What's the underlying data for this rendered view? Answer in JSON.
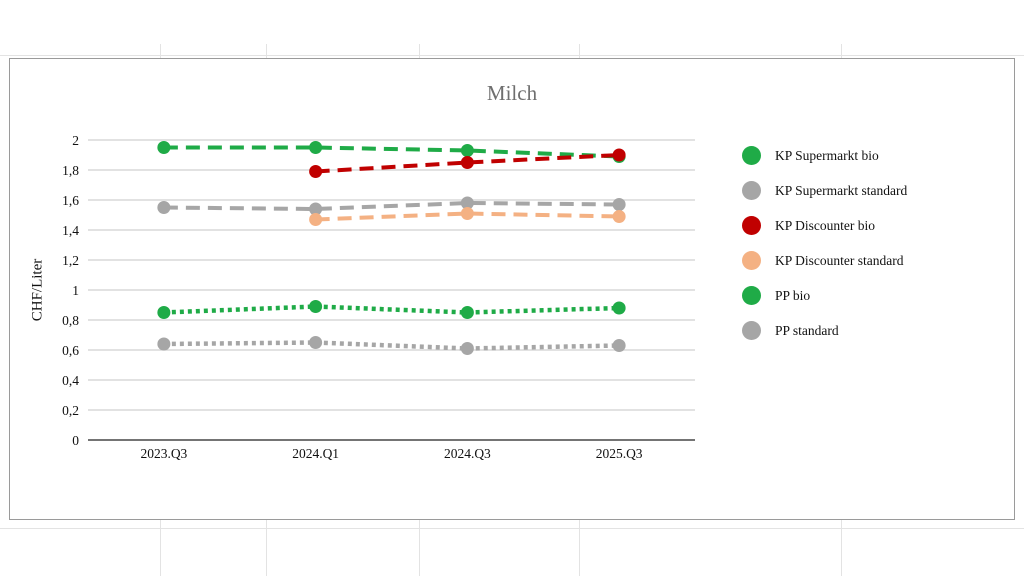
{
  "chart_data": {
    "type": "line",
    "title": "Milch",
    "xlabel": "",
    "ylabel": "CHF/Liter",
    "categories": [
      "2023.Q3",
      "2024.Q1",
      "2024.Q3",
      "2025.Q3"
    ],
    "ylim": [
      0,
      2
    ],
    "yticks": [
      "0",
      "0,2",
      "0,4",
      "0,6",
      "0,8",
      "1",
      "1,2",
      "1,4",
      "1,6",
      "1,8",
      "2"
    ],
    "grid": true,
    "legend_position": "right",
    "series": [
      {
        "name": "KP Supermarkt bio",
        "values": [
          1.95,
          1.95,
          1.93,
          1.89
        ],
        "color": "#1fab47",
        "line_style": "dashed"
      },
      {
        "name": "KP Supermarkt standard",
        "values": [
          1.55,
          1.54,
          1.58,
          1.57
        ],
        "color": "#a6a6a6",
        "line_style": "dashed"
      },
      {
        "name": "KP Discounter bio",
        "values": [
          null,
          1.79,
          1.85,
          1.9
        ],
        "color": "#c00000",
        "line_style": "dashed"
      },
      {
        "name": "KP Discounter standard",
        "values": [
          null,
          1.47,
          1.51,
          1.49
        ],
        "color": "#f4b183",
        "line_style": "dashed"
      },
      {
        "name": "PP bio",
        "values": [
          0.85,
          0.89,
          0.85,
          0.88
        ],
        "color": "#1fab47",
        "line_style": "dotted"
      },
      {
        "name": "PP standard",
        "values": [
          0.64,
          0.65,
          0.61,
          0.63
        ],
        "color": "#a6a6a6",
        "line_style": "dotted"
      }
    ]
  }
}
